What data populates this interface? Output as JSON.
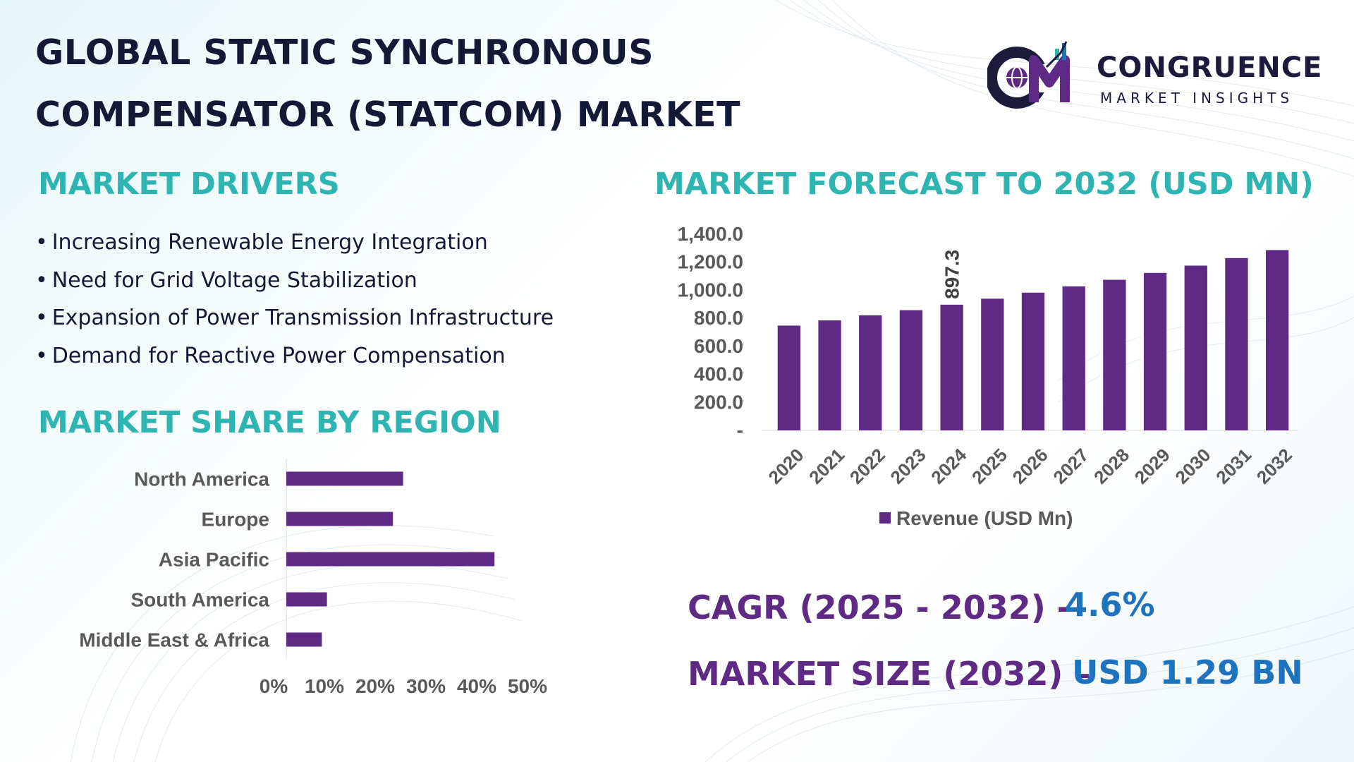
{
  "title": {
    "line1": "GLOBAL STATIC SYNCHRONOUS",
    "line2": "COMPENSATOR (STATCOM) MARKET"
  },
  "logo": {
    "name": "CONGRUENCE",
    "tagline": "MARKET INSIGHTS",
    "icon": "globe-cm-icon"
  },
  "drivers": {
    "heading": "MARKET DRIVERS",
    "bullet": "•",
    "items": [
      "Increasing Renewable Energy Integration",
      "Need for Grid Voltage Stabilization",
      "Expansion of Power Transmission Infrastructure",
      "Demand for Reactive Power Compensation"
    ]
  },
  "region": {
    "heading": "MARKET SHARE BY REGION"
  },
  "forecast": {
    "heading": "MARKET FORECAST TO 2032 (USD MN)"
  },
  "stats": {
    "cagr_label": "CAGR (2025 - 2032) -",
    "cagr_value": "4.6%",
    "size_label": "MARKET SIZE (2032) –",
    "size_value": "USD 1.29 BN"
  },
  "colors": {
    "bar": "#5e2a84",
    "heading": "#2fb5b1",
    "title": "#141a36",
    "stat_label": "#5e2a84",
    "stat_value": "#1e73be",
    "axis_text": "#595959"
  },
  "chart_data": [
    {
      "type": "bar",
      "orientation": "vertical",
      "categories": [
        "2020",
        "2021",
        "2022",
        "2023",
        "2024",
        "2025",
        "2026",
        "2027",
        "2028",
        "2029",
        "2030",
        "2031",
        "2032"
      ],
      "series": [
        {
          "name": "Revenue (USD Mn)",
          "values": [
            748,
            785,
            821,
            858,
            897.3,
            940,
            983,
            1028,
            1075,
            1124,
            1176,
            1230,
            1287
          ]
        }
      ],
      "data_labels": [
        {
          "category": "2024",
          "text": "897.3"
        }
      ],
      "y_ticks": [
        "-",
        "200.0",
        "400.0",
        "600.0",
        "800.0",
        "1,000.0",
        "1,200.0",
        "1,400.0"
      ],
      "ylim": [
        0,
        1400
      ],
      "legend": "bottom",
      "grid": false
    },
    {
      "type": "bar",
      "orientation": "horizontal",
      "categories": [
        "North America",
        "Europe",
        "Asia Pacific",
        "South America",
        "Middle East & Africa"
      ],
      "values": [
        0.23,
        0.21,
        0.41,
        0.08,
        0.07
      ],
      "x_ticks": [
        "0%",
        "10%",
        "20%",
        "30%",
        "40%",
        "50%"
      ],
      "xlim": [
        0,
        0.5
      ],
      "grid": false
    }
  ]
}
